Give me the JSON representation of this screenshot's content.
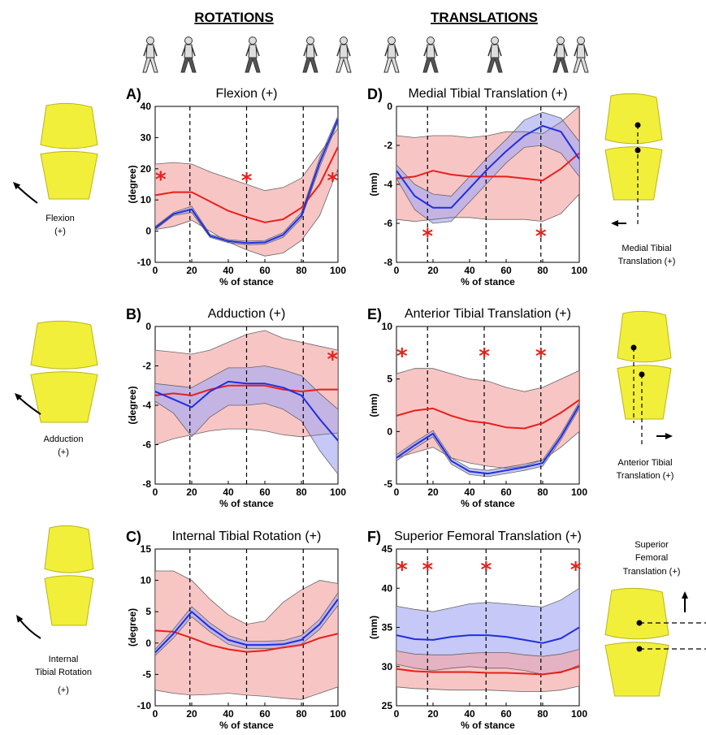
{
  "headers": {
    "left": "ROTATIONS",
    "right": "TRANSLATIONS"
  },
  "side_labels": {
    "A": [
      "Flexion",
      "(+)"
    ],
    "B": [
      "Adduction",
      "(+)"
    ],
    "C": [
      "Internal",
      "Tibial Rotation",
      "(+)"
    ],
    "D": [
      "Medial Tibial",
      "Translation (+)"
    ],
    "E": [
      "Anterior Tibial",
      "Translation (+)"
    ],
    "F": [
      "Superior",
      "Femoral",
      "Translation (+)"
    ]
  },
  "colors": {
    "red": "#e8201a",
    "blue": "#1f2fe0",
    "red_band": "#f5a6a6",
    "blue_band": "#a8abf2",
    "knee": "#f2ef3a"
  },
  "icons": [
    "walking-figure-icon",
    "knee-joint-icon",
    "rotation-arrow-icon"
  ],
  "chart_data": [
    {
      "id": "A",
      "letter": "A)",
      "type": "line",
      "title": "Flexion (+)",
      "xlabel": "% of stance",
      "ylabel": "(degree)",
      "xlim": [
        0,
        100
      ],
      "ylim": [
        -10,
        40
      ],
      "xticks": [
        "0",
        "20",
        "40",
        "60",
        "80",
        "100"
      ],
      "yticks": [
        "-10",
        "0",
        "10",
        "20",
        "30",
        "40"
      ],
      "vlines": [
        19,
        50,
        81
      ],
      "asterisks": [
        {
          "x": 3,
          "y": 17
        },
        {
          "x": 50,
          "y": 16.5
        },
        {
          "x": 97,
          "y": 16.5
        }
      ],
      "x": [
        0,
        10,
        20,
        30,
        40,
        50,
        60,
        70,
        80,
        90,
        100
      ],
      "series": [
        {
          "color": "red",
          "mean": [
            11.5,
            12.5,
            12.5,
            9.5,
            6.5,
            4.5,
            2.8,
            3.8,
            7.5,
            15,
            27
          ],
          "upper": [
            21.5,
            22,
            21.5,
            19,
            17,
            15,
            13,
            14,
            17,
            25,
            33
          ],
          "lower": [
            0.5,
            1.5,
            3.5,
            0,
            -3.5,
            -6,
            -8,
            -7,
            -3,
            5,
            20
          ]
        },
        {
          "color": "blue",
          "mean": [
            1,
            5.5,
            7,
            -1.5,
            -3.2,
            -3.8,
            -3.6,
            -1.2,
            5,
            22,
            36
          ],
          "upper": [
            1.5,
            6,
            8,
            -1,
            -2.7,
            -3.2,
            -3,
            -0.5,
            6,
            23.5,
            37
          ],
          "lower": [
            0.5,
            5,
            6,
            -2,
            -3.7,
            -4.4,
            -4.2,
            -2,
            4,
            20.5,
            35
          ]
        }
      ]
    },
    {
      "id": "B",
      "letter": "B)",
      "type": "line",
      "title": "Adduction (+)",
      "xlabel": "% of stance",
      "ylabel": "(degree)",
      "xlim": [
        0,
        100
      ],
      "ylim": [
        -8,
        0
      ],
      "xticks": [
        "0",
        "20",
        "40",
        "60",
        "80",
        "100"
      ],
      "yticks": [
        "-8",
        "-6",
        "-4",
        "-2",
        "0"
      ],
      "vlines": [
        19,
        50,
        81
      ],
      "asterisks": [
        {
          "x": 97,
          "y": -1.6
        }
      ],
      "x": [
        0,
        10,
        20,
        30,
        40,
        50,
        60,
        70,
        80,
        90,
        100
      ],
      "series": [
        {
          "color": "red",
          "mean": [
            -3.5,
            -3.4,
            -3.5,
            -3.2,
            -3,
            -3,
            -3,
            -3.2,
            -3.3,
            -3.2,
            -3.2
          ],
          "upper": [
            -1.2,
            -1.3,
            -1.4,
            -1.2,
            -0.8,
            -0.4,
            -0.2,
            -0.6,
            -0.8,
            -1,
            -1.2
          ],
          "lower": [
            -6,
            -5.7,
            -5.5,
            -5.3,
            -5.2,
            -5.2,
            -5.3,
            -5.5,
            -5.6,
            -5.5,
            -5.4
          ]
        },
        {
          "color": "blue",
          "mean": [
            -3.3,
            -3.7,
            -4.1,
            -3.3,
            -2.8,
            -2.9,
            -2.9,
            -3.1,
            -3.5,
            -4.7,
            -5.8
          ],
          "upper": [
            -2.9,
            -3.0,
            -3.1,
            -2.6,
            -2.1,
            -2.1,
            -2.0,
            -2.2,
            -2.5,
            -3.4,
            -4.2
          ],
          "lower": [
            -3.8,
            -4.4,
            -5.6,
            -4.6,
            -4.0,
            -4.0,
            -3.9,
            -4.2,
            -4.8,
            -6.3,
            -7.5
          ]
        }
      ]
    },
    {
      "id": "C",
      "letter": "C)",
      "type": "line",
      "title": "Internal Tibial Rotation (+)",
      "xlabel": "% of stance",
      "ylabel": "(degree)",
      "xlim": [
        0,
        100
      ],
      "ylim": [
        -10,
        15
      ],
      "xticks": [
        "0",
        "20",
        "40",
        "60",
        "80",
        "100"
      ],
      "yticks": [
        "-10",
        "-5",
        "0",
        "5",
        "10",
        "15"
      ],
      "vlines": [
        19,
        50,
        81
      ],
      "asterisks": [],
      "x": [
        0,
        10,
        20,
        30,
        40,
        50,
        60,
        70,
        80,
        90,
        100
      ],
      "series": [
        {
          "color": "red",
          "mean": [
            2,
            1.8,
            0.8,
            -0.3,
            -1,
            -1.4,
            -1.2,
            -0.7,
            -0.3,
            0.8,
            1.5
          ],
          "upper": [
            11.5,
            11.5,
            10,
            7,
            4.5,
            3,
            3.5,
            6.5,
            8.5,
            10,
            9.5
          ],
          "lower": [
            -7.5,
            -8,
            -8.3,
            -8.2,
            -8,
            -8.3,
            -8.5,
            -8.8,
            -9,
            -8,
            -7
          ]
        },
        {
          "color": "blue",
          "mean": [
            -1.5,
            1.5,
            5,
            2.5,
            0.5,
            -0.3,
            -0.3,
            -0.2,
            0.5,
            3,
            7
          ],
          "upper": [
            -1,
            2.2,
            5.8,
            3.2,
            1.2,
            0.3,
            0.3,
            0.4,
            1.2,
            3.8,
            8
          ],
          "lower": [
            -2,
            0.8,
            4.2,
            1.8,
            -0.2,
            -0.9,
            -0.9,
            -0.8,
            -0.2,
            2.2,
            6
          ]
        }
      ]
    },
    {
      "id": "D",
      "letter": "D)",
      "type": "line",
      "title": "Medial Tibial Translation (+)",
      "xlabel": "% of stance",
      "ylabel": "(mm)",
      "xlim": [
        0,
        100
      ],
      "ylim": [
        -8,
        0
      ],
      "xticks": [
        "0",
        "20",
        "40",
        "60",
        "80",
        "100"
      ],
      "yticks": [
        "-8",
        "-6",
        "-4",
        "-2",
        "0"
      ],
      "vlines": [
        17,
        49,
        79
      ],
      "asterisks": [
        {
          "x": 17,
          "y": -6.6
        },
        {
          "x": 79,
          "y": -6.6
        }
      ],
      "x": [
        0,
        10,
        20,
        30,
        40,
        50,
        60,
        70,
        80,
        90,
        100
      ],
      "series": [
        {
          "color": "red",
          "mean": [
            -3.7,
            -3.6,
            -3.3,
            -3.5,
            -3.6,
            -3.6,
            -3.6,
            -3.7,
            -3.8,
            -3.2,
            -2.4
          ],
          "upper": [
            -1.5,
            -1.6,
            -1.5,
            -1.5,
            -1.6,
            -1.5,
            -1.3,
            -1.3,
            -1.4,
            -0.8,
            0
          ],
          "lower": [
            -5.8,
            -5.9,
            -5.8,
            -5.7,
            -5.7,
            -5.8,
            -5.8,
            -5.8,
            -5.9,
            -5.5,
            -4.5
          ]
        },
        {
          "color": "blue",
          "mean": [
            -3.3,
            -4.6,
            -5.2,
            -5.2,
            -4.2,
            -3.2,
            -2.3,
            -1.5,
            -1.0,
            -1.3,
            -2.7
          ],
          "upper": [
            -3.0,
            -4.0,
            -4.5,
            -4.6,
            -3.6,
            -2.6,
            -1.7,
            -0.7,
            -0.3,
            -0.6,
            -1.8
          ],
          "lower": [
            -3.7,
            -5.3,
            -6.0,
            -5.9,
            -4.9,
            -3.9,
            -2.9,
            -2.1,
            -2.0,
            -2.4,
            -3.6
          ]
        }
      ]
    },
    {
      "id": "E",
      "letter": "E)",
      "type": "line",
      "title": "Anterior Tibial Translation (+)",
      "xlabel": "% of stance",
      "ylabel": "(mm)",
      "xlim": [
        0,
        100
      ],
      "ylim": [
        -5,
        10
      ],
      "xticks": [
        "0",
        "20",
        "40",
        "60",
        "80",
        "100"
      ],
      "yticks": [
        "-5",
        "0",
        "5",
        "10"
      ],
      "vlines": [
        17,
        48,
        79
      ],
      "asterisks": [
        {
          "x": 3,
          "y": 7.3
        },
        {
          "x": 48,
          "y": 7.3
        },
        {
          "x": 79,
          "y": 7.3
        }
      ],
      "x": [
        0,
        10,
        20,
        30,
        40,
        50,
        60,
        70,
        80,
        90,
        100
      ],
      "series": [
        {
          "color": "red",
          "mean": [
            1.5,
            2,
            2.2,
            1.5,
            1,
            0.8,
            0.4,
            0.3,
            0.8,
            1.8,
            3
          ],
          "upper": [
            5.5,
            6,
            6,
            5.5,
            5,
            4.8,
            4.2,
            3.8,
            4.2,
            5,
            5.8
          ],
          "lower": [
            -2.5,
            -2,
            -1.5,
            -2.5,
            -3,
            -3.3,
            -3.5,
            -3.3,
            -2.7,
            -1.5,
            0
          ]
        },
        {
          "color": "blue",
          "mean": [
            -2.5,
            -1.3,
            -0.2,
            -2.8,
            -3.8,
            -4,
            -3.7,
            -3.4,
            -3.0,
            -0.5,
            2.5
          ],
          "upper": [
            -2.2,
            -1.0,
            0.1,
            -2.5,
            -3.5,
            -3.7,
            -3.4,
            -3.1,
            -2.7,
            -0.2,
            2.8
          ],
          "lower": [
            -2.8,
            -1.6,
            -0.5,
            -3.1,
            -4.1,
            -4.3,
            -4.0,
            -3.7,
            -3.3,
            -0.8,
            2.2
          ]
        }
      ]
    },
    {
      "id": "F",
      "letter": "F)",
      "type": "line",
      "title": "Superior Femoral Translation (+)",
      "xlabel": "% of stance",
      "ylabel": "(mm)",
      "xlim": [
        0,
        100
      ],
      "ylim": [
        25,
        45
      ],
      "xticks": [
        "0",
        "20",
        "40",
        "60",
        "80",
        "100"
      ],
      "yticks": [
        "25",
        "30",
        "35",
        "40",
        "45"
      ],
      "vlines": [
        17,
        49,
        79
      ],
      "asterisks": [
        {
          "x": 3,
          "y": 42.5
        },
        {
          "x": 17,
          "y": 42.5
        },
        {
          "x": 49,
          "y": 42.5
        },
        {
          "x": 98,
          "y": 42.5
        }
      ],
      "x": [
        0,
        10,
        20,
        30,
        40,
        50,
        60,
        70,
        80,
        90,
        100
      ],
      "series": [
        {
          "color": "blue",
          "mean": [
            34,
            33.5,
            33.4,
            33.8,
            34,
            34,
            33.8,
            33.4,
            33,
            33.6,
            35
          ],
          "upper": [
            37.7,
            37.3,
            37,
            37.5,
            38,
            38.2,
            38,
            37.8,
            37.6,
            38.5,
            40
          ],
          "lower": [
            30.3,
            29.8,
            29.5,
            29.8,
            30,
            29.8,
            29.8,
            29.5,
            29,
            29.2,
            30.2
          ]
        },
        {
          "color": "red",
          "mean": [
            29.7,
            29.4,
            29.3,
            29.3,
            29.3,
            29.2,
            29.2,
            29.1,
            29,
            29.3,
            30
          ],
          "upper": [
            32,
            31.6,
            31.5,
            31.5,
            31.7,
            31.8,
            31.8,
            31.5,
            31.3,
            31.6,
            32.2
          ],
          "lower": [
            27.4,
            27.2,
            27.1,
            27,
            27,
            27,
            26.9,
            26.8,
            26.8,
            27,
            27.5
          ]
        }
      ]
    }
  ]
}
